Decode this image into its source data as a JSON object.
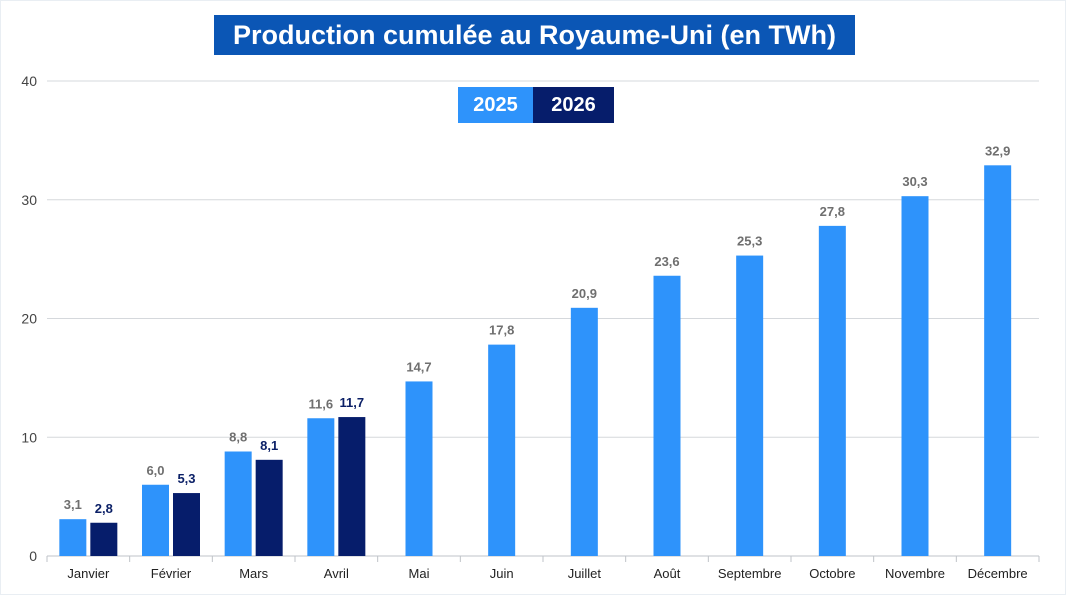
{
  "colors": {
    "series_2025": "#2e93fb",
    "series_2026": "#061d6b",
    "title_bg": "#0b56b5",
    "label_2025": "#6f6f6f",
    "label_2026": "#0a1f66",
    "grid": "#d5d8dc",
    "axis_text": "#444444"
  },
  "chart_data": {
    "type": "bar",
    "title": "Production cumulée au Royaume-Uni (en TWh)",
    "xlabel": "",
    "ylabel": "",
    "ylim": [
      0,
      40
    ],
    "yticks": [
      0,
      10,
      20,
      30,
      40
    ],
    "grid": true,
    "legend_position": "top-center",
    "categories": [
      "Janvier",
      "Février",
      "Mars",
      "Avril",
      "Mai",
      "Juin",
      "Juillet",
      "Août",
      "Septembre",
      "Octobre",
      "Novembre",
      "Décembre"
    ],
    "series": [
      {
        "name": "2025",
        "values": [
          3.1,
          6.0,
          8.8,
          11.6,
          14.7,
          17.8,
          20.9,
          23.6,
          25.3,
          27.8,
          30.3,
          32.9
        ],
        "labels": [
          "3,1",
          "6,0",
          "8,8",
          "11,6",
          "14,7",
          "17,8",
          "20,9",
          "23,6",
          "25,3",
          "27,8",
          "30,3",
          "32,9"
        ]
      },
      {
        "name": "2026",
        "values": [
          2.8,
          5.3,
          8.1,
          11.7,
          null,
          null,
          null,
          null,
          null,
          null,
          null,
          null
        ],
        "labels": [
          "2,8",
          "5,3",
          "8,1",
          "11,7",
          null,
          null,
          null,
          null,
          null,
          null,
          null,
          null
        ]
      }
    ]
  }
}
